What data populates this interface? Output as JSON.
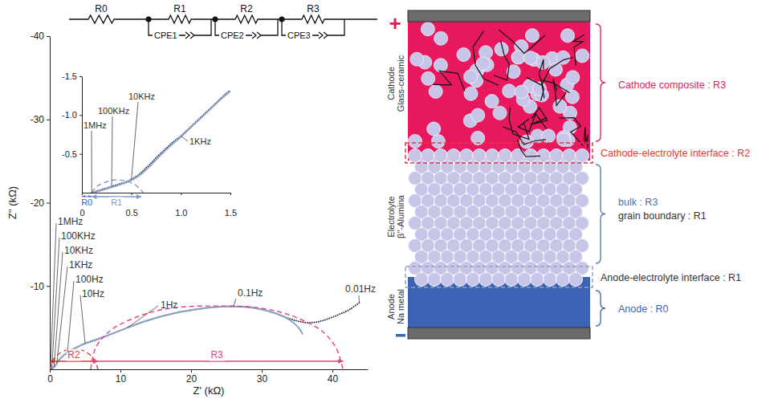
{
  "chart_data": [
    {
      "type": "line",
      "xlabel": "Z' (kΩ)",
      "ylabel": "Z'' (kΩ)",
      "xlim": [
        0,
        45
      ],
      "xticks": [
        0,
        10,
        20,
        30,
        40
      ],
      "ylim": [
        0,
        -40
      ],
      "yticks": [
        -10,
        -20,
        -30,
        -40
      ],
      "series": [
        {
          "type": "line",
          "line_style": "dotted",
          "color": "#1c2b4d",
          "x": [
            0.1,
            0.3,
            0.6,
            1.0,
            1.5,
            2.0,
            2.5,
            3.5,
            5,
            6.5,
            8,
            9.5,
            11,
            12.5,
            14,
            15.5,
            17,
            18.5,
            20,
            22,
            24,
            26,
            28,
            30,
            32,
            33.5,
            35,
            36.5,
            38,
            39.5,
            41,
            42.5,
            43.8
          ],
          "values": [
            0,
            -0.08,
            -0.26,
            -0.73,
            -1.32,
            -1.7,
            -2.0,
            -2.5,
            -3.1,
            -3.5,
            -4.0,
            -4.5,
            -5.0,
            -5.5,
            -5.9,
            -6.3,
            -6.6,
            -6.9,
            -7.1,
            -7.35,
            -7.5,
            -7.55,
            -7.5,
            -7.2,
            -6.7,
            -6.2,
            -5.8,
            -5.6,
            -5.7,
            -6.1,
            -6.6,
            -7.2,
            -8.0
          ]
        },
        {
          "type": "line",
          "line_style": "solid",
          "color": "#8ea3c6",
          "x": [
            0.1,
            0.6,
            1.0,
            1.5,
            2.5,
            5,
            8,
            11,
            14,
            17,
            20,
            23,
            26,
            29,
            32,
            34,
            35.2,
            35.8
          ],
          "values": [
            0,
            -0.26,
            -0.73,
            -1.3,
            -2.0,
            -3.1,
            -4.0,
            -5.0,
            -5.9,
            -6.6,
            -7.1,
            -7.45,
            -7.55,
            -7.35,
            -6.7,
            -5.9,
            -5.0,
            -4.2
          ]
        },
        {
          "type": "line",
          "line_style": "dashed",
          "color": "#e53935",
          "x": [
            0,
            0.4,
            1.2,
            2.3,
            3.4,
            4.5,
            5.6,
            6.4,
            6.8
          ],
          "values": [
            0,
            -1.0,
            -1.8,
            -2.3,
            -2.45,
            -2.3,
            -1.8,
            -1.0,
            0
          ]
        },
        {
          "type": "line",
          "line_style": "dashed",
          "color": "#e2457f",
          "x": [
            5.8,
            6.5,
            8.5,
            11.5,
            15,
            19,
            23.5,
            28,
            32,
            35.5,
            38.5,
            40.5,
            41.5
          ],
          "values": [
            0,
            -2.6,
            -4.6,
            -6.0,
            -7.0,
            -7.5,
            -7.6,
            -7.5,
            -7.0,
            -6.0,
            -4.6,
            -2.6,
            0
          ]
        }
      ],
      "annotations": [
        {
          "text": "1MHz",
          "x": 0.1,
          "y": 0
        },
        {
          "text": "100KHz",
          "x": 0.3,
          "y": -0.08
        },
        {
          "text": "10KHz",
          "x": 0.6,
          "y": -0.26
        },
        {
          "text": "1KHz",
          "x": 1.0,
          "y": -0.73
        },
        {
          "text": "100Hz",
          "x": 2.5,
          "y": -2.0
        },
        {
          "text": "10Hz",
          "x": 5,
          "y": -3.1
        },
        {
          "text": "1Hz",
          "x": 11,
          "y": -5.0
        },
        {
          "text": "0.1Hz",
          "x": 26,
          "y": -7.55
        },
        {
          "text": "0.01Hz",
          "x": 43.8,
          "y": -8.0
        }
      ],
      "ranges": [
        {
          "text": "R2",
          "x": [
            0,
            6.8
          ],
          "color": "#e53935"
        },
        {
          "text": "R3",
          "x": [
            5.8,
            41.5
          ],
          "color": "#e2457f"
        }
      ]
    },
    {
      "type": "line",
      "xlim": [
        0,
        1.5
      ],
      "xticks": [
        0,
        0.5,
        {
          "value": 1,
          "label": "1.0"
        },
        1.5
      ],
      "ylim": [
        0,
        -1.5
      ],
      "yticks": [
        -0.5,
        {
          "value": -1,
          "label": "-1.0"
        },
        -1.5
      ],
      "series": [
        {
          "type": "line",
          "line_style": "dotted",
          "color": "#1c2b4d",
          "x": [
            0.1,
            0.15,
            0.2,
            0.25,
            0.3,
            0.35,
            0.4,
            0.45,
            0.5,
            0.55,
            0.6,
            0.65,
            0.7,
            0.75,
            0.8,
            0.85,
            0.9,
            0.95,
            1.0,
            1.05,
            1.1,
            1.15,
            1.2,
            1.25,
            1.3,
            1.35,
            1.4,
            1.45,
            1.5
          ],
          "values": [
            0,
            -0.02,
            -0.04,
            -0.06,
            -0.08,
            -0.1,
            -0.12,
            -0.14,
            -0.17,
            -0.21,
            -0.26,
            -0.32,
            -0.38,
            -0.45,
            -0.51,
            -0.57,
            -0.63,
            -0.68,
            -0.73,
            -0.79,
            -0.85,
            -0.91,
            -0.97,
            -1.03,
            -1.09,
            -1.15,
            -1.21,
            -1.27,
            -1.32
          ]
        },
        {
          "type": "line",
          "line_style": "solid",
          "color": "#8ea3c6",
          "x": [
            0.1,
            0.2,
            0.3,
            0.4,
            0.5,
            0.6,
            0.7,
            0.8,
            0.9,
            1.0,
            1.1,
            1.2,
            1.3,
            1.4,
            1.5
          ],
          "values": [
            0,
            -0.03,
            -0.07,
            -0.11,
            -0.16,
            -0.24,
            -0.36,
            -0.49,
            -0.61,
            -0.72,
            -0.84,
            -0.96,
            -1.08,
            -1.2,
            -1.31
          ]
        },
        {
          "type": "line",
          "line_style": "dashed",
          "color": "#7f97c4",
          "x": [
            0.1,
            0.15,
            0.25,
            0.35,
            0.45,
            0.55,
            0.62
          ],
          "values": [
            0,
            -0.08,
            -0.14,
            -0.165,
            -0.15,
            -0.09,
            0
          ]
        }
      ],
      "annotations": [
        {
          "text": "1MHz",
          "x": 0.1,
          "y": 0
        },
        {
          "text": "100KHz",
          "x": 0.3,
          "y": -0.08
        },
        {
          "text": "10KHz",
          "x": 0.5,
          "y": -0.17
        },
        {
          "text": "1KHz",
          "x": 1.0,
          "y": -0.73
        }
      ],
      "ranges": [
        {
          "text": "R0",
          "x": [
            0,
            0.1
          ],
          "color": "#3b64b4"
        },
        {
          "text": "R1",
          "x": [
            0.1,
            0.6
          ],
          "color": "#7f97c4"
        }
      ]
    }
  ],
  "circuit": {
    "elements": [
      {
        "resistor": "R0"
      },
      {
        "resistor": "R1",
        "cpe": "CPE1"
      },
      {
        "resistor": "R2",
        "cpe": "CPE2"
      },
      {
        "resistor": "R3",
        "cpe": "CPE3"
      }
    ]
  },
  "cell_diagram": {
    "positive_terminal": "+",
    "layers": [
      {
        "lines": [
          "Cathode",
          "Glass-ceramic"
        ],
        "color": "#e8185f"
      },
      {
        "lines": [
          "Electrolyte",
          "β''-Alumina"
        ],
        "color": "#c7c6e8"
      },
      {
        "lines": [
          "Anode",
          "Na metal"
        ],
        "color": "#3d63b4"
      }
    ],
    "labels": [
      {
        "text": "Cathode composite : R3",
        "color": "#e8185f"
      },
      {
        "text": "Cathode-electrolyte interface : R2",
        "color": "#e53935"
      },
      {
        "text": "bulk : R3",
        "color": "#4f72ad"
      },
      {
        "text": "grain boundary : R1",
        "color": "#333333"
      },
      {
        "text": "Anode-electrolyte interface : R1",
        "color": "#333333"
      },
      {
        "text": "Anode : R0",
        "color": "#3d63b4"
      }
    ]
  }
}
